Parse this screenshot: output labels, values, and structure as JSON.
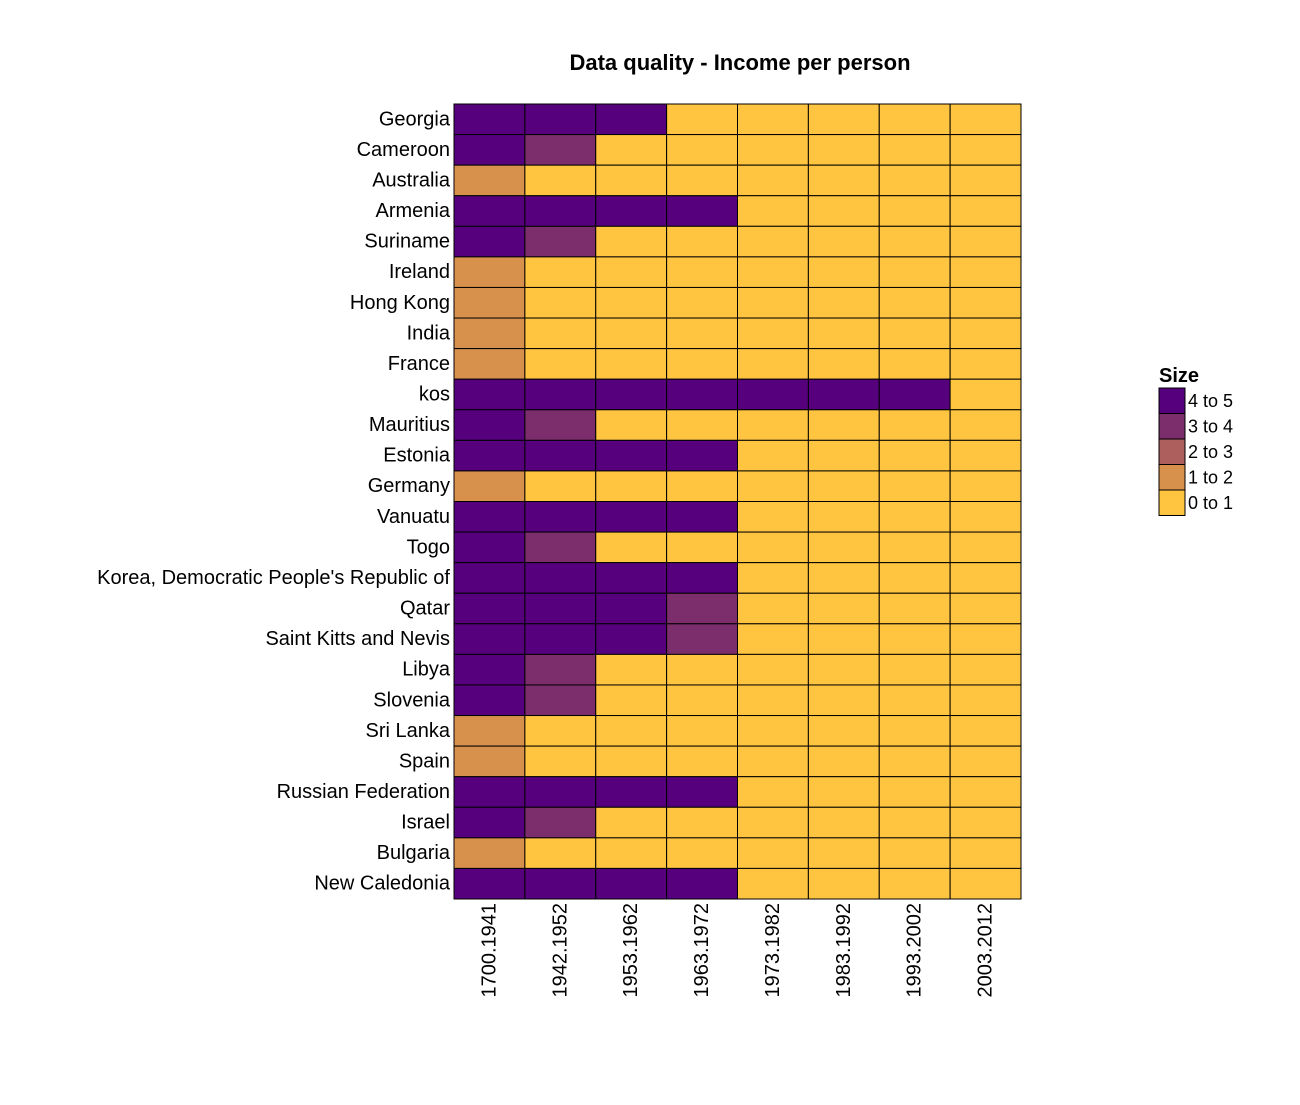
{
  "chart_data": {
    "type": "heatmap",
    "title": "Data quality - Income per person",
    "xlabel": "",
    "ylabel": "",
    "columns": [
      "1700.1941",
      "1942.1952",
      "1953.1962",
      "1963.1972",
      "1973.1982",
      "1983.1992",
      "1993.2002",
      "2003.2012"
    ],
    "rows": [
      "Georgia",
      "Cameroon",
      "Australia",
      "Armenia",
      "Suriname",
      "Ireland",
      "Hong Kong",
      "India",
      "France",
      "kos",
      "Mauritius",
      "Estonia",
      "Germany",
      "Vanuatu",
      "Togo",
      "Korea, Democratic People's Republic of",
      "Qatar",
      "Saint Kitts and Nevis",
      "Libya",
      "Slovenia",
      "Sri Lanka",
      "Spain",
      "Russian Federation",
      "Israel",
      "Bulgaria",
      "New Caledonia"
    ],
    "values": [
      [
        4,
        4,
        4,
        0,
        0,
        0,
        0,
        0
      ],
      [
        4,
        3,
        0,
        0,
        0,
        0,
        0,
        0
      ],
      [
        1,
        0,
        0,
        0,
        0,
        0,
        0,
        0
      ],
      [
        4,
        4,
        4,
        4,
        0,
        0,
        0,
        0
      ],
      [
        4,
        3,
        0,
        0,
        0,
        0,
        0,
        0
      ],
      [
        1,
        0,
        0,
        0,
        0,
        0,
        0,
        0
      ],
      [
        1,
        0,
        0,
        0,
        0,
        0,
        0,
        0
      ],
      [
        1,
        0,
        0,
        0,
        0,
        0,
        0,
        0
      ],
      [
        1,
        0,
        0,
        0,
        0,
        0,
        0,
        0
      ],
      [
        4,
        4,
        4,
        4,
        4,
        4,
        4,
        0
      ],
      [
        4,
        3,
        0,
        0,
        0,
        0,
        0,
        0
      ],
      [
        4,
        4,
        4,
        4,
        0,
        0,
        0,
        0
      ],
      [
        1,
        0,
        0,
        0,
        0,
        0,
        0,
        0
      ],
      [
        4,
        4,
        4,
        4,
        0,
        0,
        0,
        0
      ],
      [
        4,
        3,
        0,
        0,
        0,
        0,
        0,
        0
      ],
      [
        4,
        4,
        4,
        4,
        0,
        0,
        0,
        0
      ],
      [
        4,
        4,
        4,
        3,
        0,
        0,
        0,
        0
      ],
      [
        4,
        4,
        4,
        3,
        0,
        0,
        0,
        0
      ],
      [
        4,
        3,
        0,
        0,
        0,
        0,
        0,
        0
      ],
      [
        4,
        3,
        0,
        0,
        0,
        0,
        0,
        0
      ],
      [
        1,
        0,
        0,
        0,
        0,
        0,
        0,
        0
      ],
      [
        1,
        0,
        0,
        0,
        0,
        0,
        0,
        0
      ],
      [
        4,
        4,
        4,
        4,
        0,
        0,
        0,
        0
      ],
      [
        4,
        3,
        0,
        0,
        0,
        0,
        0,
        0
      ],
      [
        1,
        0,
        0,
        0,
        0,
        0,
        0,
        0
      ],
      [
        4,
        4,
        4,
        4,
        0,
        0,
        0,
        0
      ]
    ],
    "legend": {
      "title": "Size",
      "position": "right",
      "bins": [
        {
          "label": "4 to 5",
          "value": 4,
          "color": "#56007e"
        },
        {
          "label": "3 to 4",
          "value": 3,
          "color": "#7c2d6b"
        },
        {
          "label": "2 to 3",
          "value": 2,
          "color": "#ac5f5d"
        },
        {
          "label": "1 to 2",
          "value": 1,
          "color": "#d7914c"
        },
        {
          "label": "0 to 1",
          "value": 0,
          "color": "#ffc440"
        }
      ]
    },
    "grid": false,
    "cell_border_color": "#000000"
  }
}
